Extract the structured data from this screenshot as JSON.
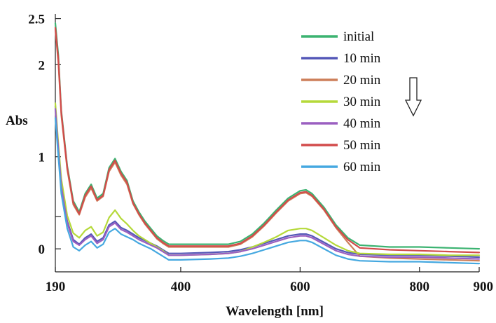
{
  "chart_data": {
    "type": "line",
    "title": "",
    "xlabel": "Wavelength [nm]",
    "ylabel": "Abs",
    "xlim": [
      190,
      900
    ],
    "ylim": [
      -0.25,
      2.55
    ],
    "x_ticks": [
      {
        "value": 190,
        "label": "190"
      },
      {
        "value": 400,
        "label": "400"
      },
      {
        "value": 600,
        "label": "600"
      },
      {
        "value": 800,
        "label": "800"
      },
      {
        "value": 900,
        "label": "900"
      }
    ],
    "y_ticks": [
      {
        "value": 0,
        "label": "0"
      },
      {
        "value": 1,
        "label": "1"
      },
      {
        "value": 2,
        "label": "2"
      },
      {
        "value": 2.5,
        "label": "2.5"
      }
    ],
    "y_minor_ticks": [
      0.35
    ],
    "grid": false,
    "legend_position": "top-right",
    "annotation": "downward arrow",
    "x": [
      190,
      195,
      200,
      210,
      220,
      230,
      240,
      250,
      260,
      270,
      280,
      290,
      300,
      310,
      320,
      330,
      340,
      350,
      360,
      370,
      380,
      400,
      450,
      480,
      500,
      520,
      540,
      560,
      580,
      600,
      610,
      620,
      640,
      660,
      680,
      700,
      750,
      800,
      850,
      900
    ],
    "series": [
      {
        "name": "initial",
        "color": "#3cb371",
        "values": [
          2.45,
          2.1,
          1.5,
          0.9,
          0.52,
          0.4,
          0.6,
          0.7,
          0.55,
          0.6,
          0.88,
          0.98,
          0.84,
          0.74,
          0.52,
          0.4,
          0.3,
          0.22,
          0.14,
          0.09,
          0.05,
          0.05,
          0.05,
          0.05,
          0.08,
          0.16,
          0.28,
          0.42,
          0.55,
          0.63,
          0.64,
          0.6,
          0.45,
          0.26,
          0.12,
          0.04,
          0.02,
          0.02,
          0.01,
          0.0
        ]
      },
      {
        "name": "10 min",
        "color": "#5558b8",
        "values": [
          1.55,
          1.1,
          0.7,
          0.3,
          0.1,
          0.05,
          0.12,
          0.16,
          0.08,
          0.12,
          0.26,
          0.3,
          0.23,
          0.2,
          0.16,
          0.12,
          0.09,
          0.06,
          0.03,
          -0.01,
          -0.05,
          -0.05,
          -0.04,
          -0.03,
          -0.01,
          0.02,
          0.06,
          0.1,
          0.14,
          0.16,
          0.16,
          0.14,
          0.07,
          0.0,
          -0.04,
          -0.06,
          -0.07,
          -0.07,
          -0.08,
          -0.09
        ]
      },
      {
        "name": "20 min",
        "color": "#cd7f5a",
        "values": [
          2.38,
          2.02,
          1.45,
          0.86,
          0.48,
          0.37,
          0.56,
          0.66,
          0.52,
          0.57,
          0.84,
          0.94,
          0.8,
          0.7,
          0.49,
          0.37,
          0.27,
          0.19,
          0.11,
          0.06,
          0.02,
          0.02,
          0.02,
          0.02,
          0.05,
          0.13,
          0.25,
          0.39,
          0.52,
          0.6,
          0.61,
          0.57,
          0.42,
          0.23,
          0.07,
          -0.08,
          -0.1,
          -0.11,
          -0.12,
          -0.13
        ]
      },
      {
        "name": "30 min",
        "color": "#b5d93a",
        "values": [
          1.58,
          1.14,
          0.76,
          0.36,
          0.17,
          0.12,
          0.2,
          0.24,
          0.14,
          0.18,
          0.34,
          0.42,
          0.33,
          0.27,
          0.2,
          0.14,
          0.1,
          0.06,
          0.02,
          -0.02,
          -0.07,
          -0.07,
          -0.06,
          -0.05,
          -0.03,
          0.02,
          0.07,
          0.13,
          0.2,
          0.22,
          0.22,
          0.2,
          0.12,
          0.04,
          -0.02,
          -0.05,
          -0.06,
          -0.06,
          -0.07,
          -0.07
        ]
      },
      {
        "name": "40 min",
        "color": "#9a5fc0",
        "values": [
          1.52,
          1.08,
          0.68,
          0.28,
          0.08,
          0.04,
          0.1,
          0.14,
          0.06,
          0.1,
          0.24,
          0.28,
          0.21,
          0.18,
          0.14,
          0.1,
          0.07,
          0.04,
          0.01,
          -0.03,
          -0.07,
          -0.07,
          -0.06,
          -0.05,
          -0.03,
          0.0,
          0.04,
          0.08,
          0.12,
          0.14,
          0.14,
          0.12,
          0.05,
          -0.02,
          -0.06,
          -0.08,
          -0.09,
          -0.09,
          -0.1,
          -0.11
        ]
      },
      {
        "name": "50 min",
        "color": "#d24b4b",
        "values": [
          2.4,
          2.06,
          1.48,
          0.88,
          0.5,
          0.38,
          0.58,
          0.68,
          0.53,
          0.58,
          0.86,
          0.96,
          0.82,
          0.72,
          0.5,
          0.38,
          0.28,
          0.2,
          0.12,
          0.07,
          0.03,
          0.03,
          0.03,
          0.03,
          0.06,
          0.14,
          0.26,
          0.4,
          0.53,
          0.61,
          0.62,
          0.58,
          0.43,
          0.24,
          0.1,
          0.01,
          -0.01,
          -0.02,
          -0.03,
          -0.04
        ]
      },
      {
        "name": "60 min",
        "color": "#45a8e0",
        "values": [
          1.42,
          1.0,
          0.6,
          0.22,
          0.02,
          -0.02,
          0.04,
          0.08,
          0.01,
          0.05,
          0.18,
          0.22,
          0.16,
          0.13,
          0.1,
          0.06,
          0.03,
          0.0,
          -0.04,
          -0.08,
          -0.12,
          -0.12,
          -0.11,
          -0.1,
          -0.08,
          -0.05,
          -0.01,
          0.03,
          0.07,
          0.09,
          0.09,
          0.07,
          0.0,
          -0.07,
          -0.11,
          -0.13,
          -0.14,
          -0.14,
          -0.15,
          -0.16
        ]
      }
    ]
  }
}
